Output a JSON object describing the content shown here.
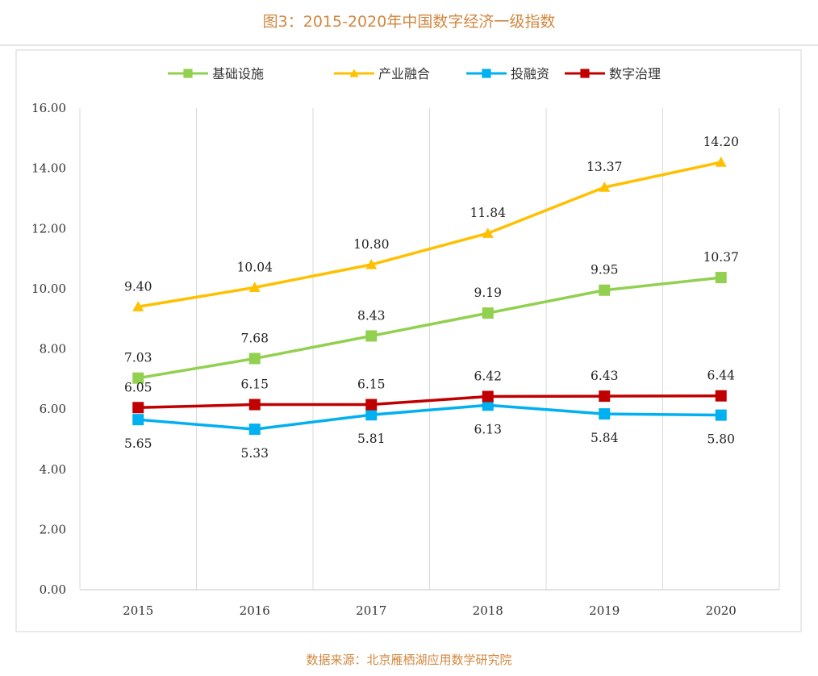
{
  "chart_data": {
    "type": "line",
    "title": "图3：2015-2020年中国数字经济一级指数",
    "source": "数据来源：北京雁栖湖应用数学研究院",
    "categories": [
      "2015",
      "2016",
      "2017",
      "2018",
      "2019",
      "2020"
    ],
    "ylim": [
      0,
      16
    ],
    "yticks": [
      "0.00",
      "2.00",
      "4.00",
      "6.00",
      "8.00",
      "10.00",
      "12.00",
      "14.00",
      "16.00"
    ],
    "grid": "vertical",
    "legend": "top",
    "series": [
      {
        "name": "基础设施",
        "color": "#92d050",
        "marker": "square",
        "label_pos": "above",
        "values": [
          7.03,
          7.68,
          8.43,
          9.19,
          9.95,
          10.37
        ],
        "labels": [
          "7.03",
          "7.68",
          "8.43",
          "9.19",
          "9.95",
          "10.37"
        ]
      },
      {
        "name": "产业融合",
        "color": "#ffc000",
        "marker": "triangle",
        "label_pos": "above",
        "values": [
          9.4,
          10.04,
          10.8,
          11.84,
          13.37,
          14.2
        ],
        "labels": [
          "9.40",
          "10.04",
          "10.80",
          "11.84",
          "13.37",
          "14.20"
        ]
      },
      {
        "name": "投融资",
        "color": "#00b0f0",
        "marker": "square",
        "label_pos": "below",
        "values": [
          5.65,
          5.33,
          5.81,
          6.13,
          5.84,
          5.8
        ],
        "labels": [
          "5.65",
          "5.33",
          "5.81",
          "6.13",
          "5.84",
          "5.80"
        ]
      },
      {
        "name": "数字治理",
        "color": "#c00000",
        "marker": "square",
        "label_pos": "above",
        "values": [
          6.05,
          6.15,
          6.15,
          6.42,
          6.43,
          6.44
        ],
        "labels": [
          "6.05",
          "6.15",
          "6.15",
          "6.42",
          "6.43",
          "6.44"
        ]
      }
    ]
  }
}
